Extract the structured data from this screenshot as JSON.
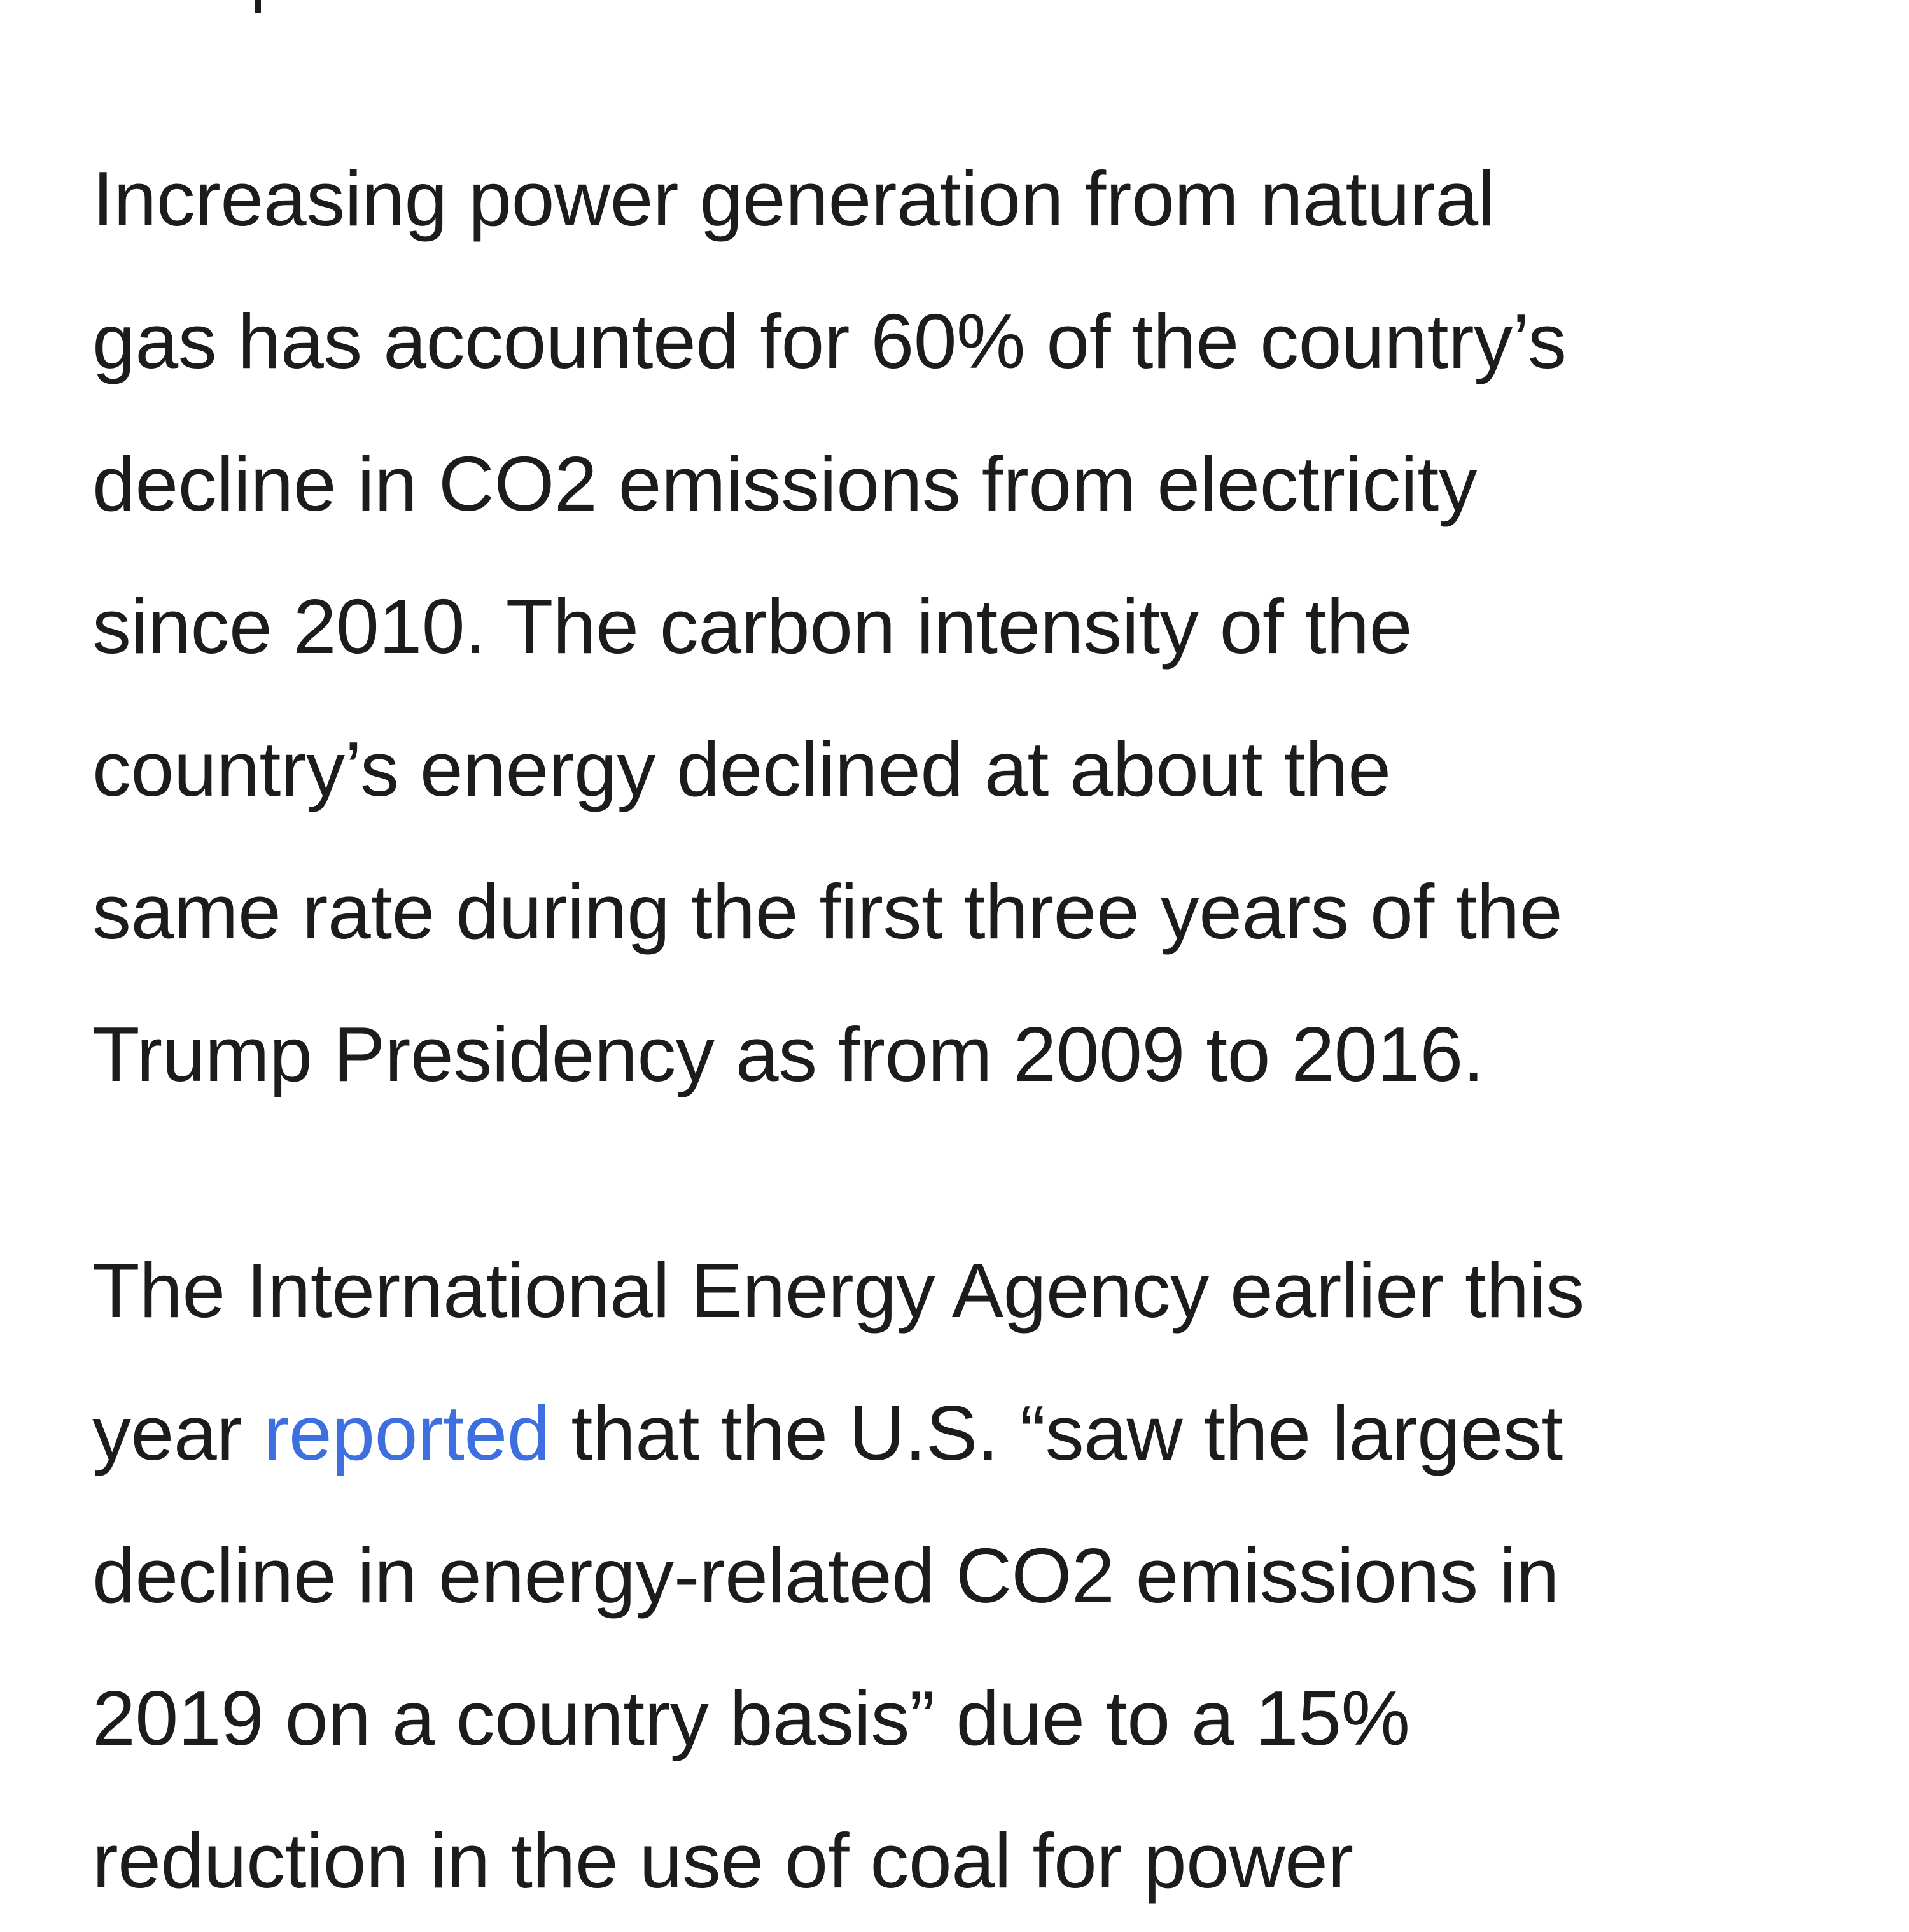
{
  "article": {
    "paragraph_1": {
      "lines": [
        "Increasing power generation from natural",
        "gas has accounted for 60% of the country’s",
        "decline in CO2 emissions from electricity",
        "since 2010. The carbon intensity of the",
        "country’s energy declined at about the",
        "same rate during the first three years of the",
        "Trump Presidency as from 2009 to 2016."
      ]
    },
    "paragraph_2": {
      "line_1": "The International Energy Agency earlier this",
      "line_2_before": "year ",
      "line_2_link": "reported",
      "line_2_after": " that the U.S. “saw the largest",
      "line_3": "decline in energy-related CO2 emissions in",
      "line_4": "2019 on a country basis” due to a 15%",
      "line_5": "reduction in the use of coal for power"
    }
  },
  "colors": {
    "text": "#1c1c1c",
    "link": "#3d6fe0",
    "background": "#ffffff"
  }
}
